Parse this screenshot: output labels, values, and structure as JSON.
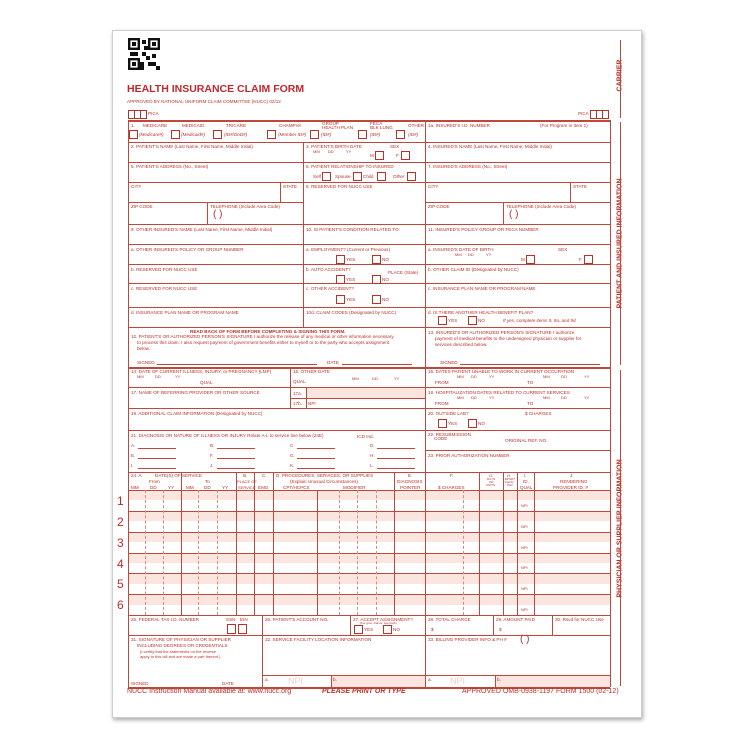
{
  "header": {
    "title": "HEALTH INSURANCE CLAIM FORM",
    "approved": "APPROVED BY NATIONAL UNIFORM CLAIM COMMITTEE (NUCC) 02/12",
    "pica_left": "PICA",
    "pica_right": "PICA"
  },
  "side_labels": {
    "carrier": "CARRIER",
    "patient": "PATIENT AND INSURED INFORMATION",
    "physician": "PHYSICIAN OR SUPPLIER INFORMATION"
  },
  "box1": {
    "num": "1.",
    "medicare": "MEDICARE",
    "medicaid": "MEDICAID",
    "tricare": "TRICARE",
    "champva": "CHAMPVA",
    "group1": "GROUP",
    "group2": "HEALTH PLAN",
    "feca1": "FECA",
    "feca2": "BLK LUNG",
    "other": "OTHER",
    "medicare_id": "(Medicare#)",
    "medicaid_id": "(Medicaid#)",
    "tricare_id": "(ID#/DoD#)",
    "champva_id": "(Member ID#)",
    "group_id": "(ID#)",
    "feca_id": "(ID#)",
    "other_id": "(ID#)",
    "insured_id": "1a. INSURED'S I.D. NUMBER",
    "program_note": "(For Program in Item 1)"
  },
  "box2": "2. PATIENT'S NAME (Last Name, First Name, Middle Initial)",
  "box3": {
    "label": "3. PATIENT'S BIRTH DATE",
    "mm": "MM",
    "dd": "DD",
    "yy": "YY",
    "sex": "SEX",
    "m": "M",
    "f": "F"
  },
  "box4": "4. INSURED'S NAME (Last Name, First Name, Middle Initial)",
  "box5": "5. PATIENT'S ADDRESS (No., Street)",
  "box6": {
    "label": "6. PATIENT RELATIONSHIP TO INSURED",
    "self": "Self",
    "spouse": "Spouse",
    "child": "Child",
    "other": "Other"
  },
  "box7": "7. INSURED'S ADDRESS (No., Street)",
  "city": "CITY",
  "state": "STATE",
  "zip": "ZIP CODE",
  "telephone": "TELEPHONE (Include Area Code)",
  "paren": "(      )",
  "box8": "8. RESERVED FOR NUCC USE",
  "box9": {
    "label": "9. OTHER INSURED'S NAME (Last Name, First Name, Middle Initial)",
    "a": "a. OTHER INSURED'S POLICY OR GROUP NUMBER",
    "b": "b. RESERVED FOR NUCC USE",
    "c": "c. RESERVED FOR NUCC USE",
    "d": "d. INSURANCE PLAN NAME OR PROGRAM NAME"
  },
  "box10": {
    "label": "10. IS PATIENT'S CONDITION RELATED TO:",
    "a": "a. EMPLOYMENT? (Current or Previous)",
    "b": "b. AUTO ACCIDENT?",
    "place": "PLACE (State)",
    "c": "c. OTHER ACCIDENT?",
    "d": "10d. CLAIM CODES (Designated by NUCC)",
    "yes": "YES",
    "no": "NO"
  },
  "box11": {
    "label": "11. INSURED'S POLICY GROUP OR FECA NUMBER",
    "a": "a. INSURED'S DATE OF BIRTH",
    "b": "b. OTHER CLAIM ID (Designated by NUCC)",
    "c": "c. INSURANCE PLAN NAME OR PROGRAM NAME",
    "d": "d. IS THERE ANOTHER HEALTH BENEFIT PLAN?",
    "d_note": "If yes, complete items 9, 9a, and 9d."
  },
  "box12": {
    "read_back": "READ BACK OF FORM BEFORE COMPLETING & SIGNING THIS FORM.",
    "line1": "12. PATIENT'S OR AUTHORIZED PERSON'S SIGNATURE  I authorize the release of any medical or other information necessary",
    "line2": "to process this claim. I also request payment of government benefits either to myself or to the party who accepts assignment",
    "line3": "below.",
    "signed": "SIGNED",
    "date": "DATE"
  },
  "box13": {
    "line1": "13. INSURED'S OR AUTHORIZED PERSON'S SIGNATURE I authorize",
    "line2": "payment of medical benefits to the undersigned physician or supplier for",
    "line3": "services described below.",
    "signed": "SIGNED"
  },
  "box14": {
    "label": "14. DATE OF CURRENT ILLNESS, INJURY, or PREGNANCY (LMP)",
    "qual": "QUAL."
  },
  "box15": {
    "label": "15. OTHER DATE",
    "qual": "QUAL."
  },
  "box16": {
    "label": "16. DATES PATIENT UNABLE TO WORK IN CURRENT OCCUPATION",
    "from": "FROM",
    "to": "TO"
  },
  "box17": {
    "label": "17. NAME OF REFERRING PROVIDER OR OTHER SOURCE",
    "a": "17a.",
    "b": "17b.",
    "npi": "NPI"
  },
  "box18": {
    "label": "18. HOSPITALIZATION DATES RELATED TO CURRENT SERVICES",
    "from": "FROM",
    "to": "TO"
  },
  "box19": "19. ADDITIONAL CLAIM INFORMATION (Designated by NUCC)",
  "box20": {
    "label": "20. OUTSIDE LAB?",
    "charges": "$ CHARGES"
  },
  "box21": {
    "label": "21. DIAGNOSIS OR NATURE OF ILLNESS OR INJURY  Relate A-L to service line below (24E)",
    "icd": "ICD Ind.",
    "letters": [
      "A.",
      "B.",
      "C.",
      "D.",
      "E.",
      "F.",
      "G.",
      "H.",
      "I.",
      "J.",
      "K.",
      "L."
    ]
  },
  "box22": {
    "label1": "22. RESUBMISSION",
    "label2": "CODE",
    "original": "ORIGINAL REF. NO."
  },
  "box23": "23. PRIOR AUTHORIZATION NUMBER",
  "box24": {
    "a": "24. A.",
    "dates": "DATE(S) OF SERVICE",
    "from": "From",
    "to": "To",
    "date_cols": [
      "MM",
      "DD",
      "YY",
      "MM",
      "DD",
      "YY"
    ],
    "b1": "B.",
    "b2": "PLACE OF",
    "b3": "SERVICE",
    "c1": "C.",
    "c2": "EMG",
    "d1": "D. PROCEDURES, SERVICES, OR SUPPLIES",
    "d2": "(Explain Unusual Circumstances)",
    "d3": "CPT/HCPCS",
    "d4": "MODIFIER",
    "e1": "E.",
    "e2": "DIAGNOSIS",
    "e3": "POINTER",
    "f1": "F.",
    "f2": "$ CHARGES",
    "g1": "G.",
    "g2": "DAYS",
    "g3": "OR",
    "g4": "UNITS",
    "h1": "H.",
    "h2": "EPSDT",
    "h3": "Family",
    "h4": "Plan",
    "i1": "I.",
    "i2": "ID.",
    "i3": "QUAL.",
    "j1": "J.",
    "j2": "RENDERING",
    "j3": "PROVIDER ID. #",
    "rows": [
      "1",
      "2",
      "3",
      "4",
      "5",
      "6"
    ],
    "npi": "NPI"
  },
  "box25": {
    "label": "25. FEDERAL TAX I.D. NUMBER",
    "ssn": "SSN",
    "ein": "EIN"
  },
  "box26": "26. PATIENT'S ACCOUNT NO.",
  "box27": {
    "label": "27. ACCEPT ASSIGNMENT?",
    "note": "(For govt. claims, see back)",
    "yes": "YES",
    "no": "NO"
  },
  "box28": {
    "label": "28. TOTAL CHARGE",
    "dollar": "$"
  },
  "box29": {
    "label": "29. AMOUNT PAID",
    "dollar": "$"
  },
  "box30": "30. Rsvd for NUCC Use",
  "box31": {
    "line1": "31. SIGNATURE OF PHYSICIAN OR SUPPLIER",
    "line2": "INCLUDING DEGREES OR CREDENTIALS",
    "line3": "(I certify that the statements on the reverse",
    "line4": "apply to this bill and are made a part thereof.)",
    "signed": "SIGNED",
    "date": "DATE"
  },
  "box32": {
    "label": "32. SERVICE FACILITY LOCATION INFORMATION",
    "a": "a.",
    "npi": "NPI",
    "b": "b."
  },
  "box33": {
    "label": "33. BILLING PROVIDER INFO & PH #",
    "paren": "(        )",
    "a": "a.",
    "npi": "NPI",
    "b": "b."
  },
  "footer": {
    "manual": "NUCC Instruction Manual available at: www.nucc.org",
    "print": "PLEASE PRINT OR TYPE",
    "omb": "APPROVED OMB-0938-1197 FORM 1500 (02-12)"
  }
}
